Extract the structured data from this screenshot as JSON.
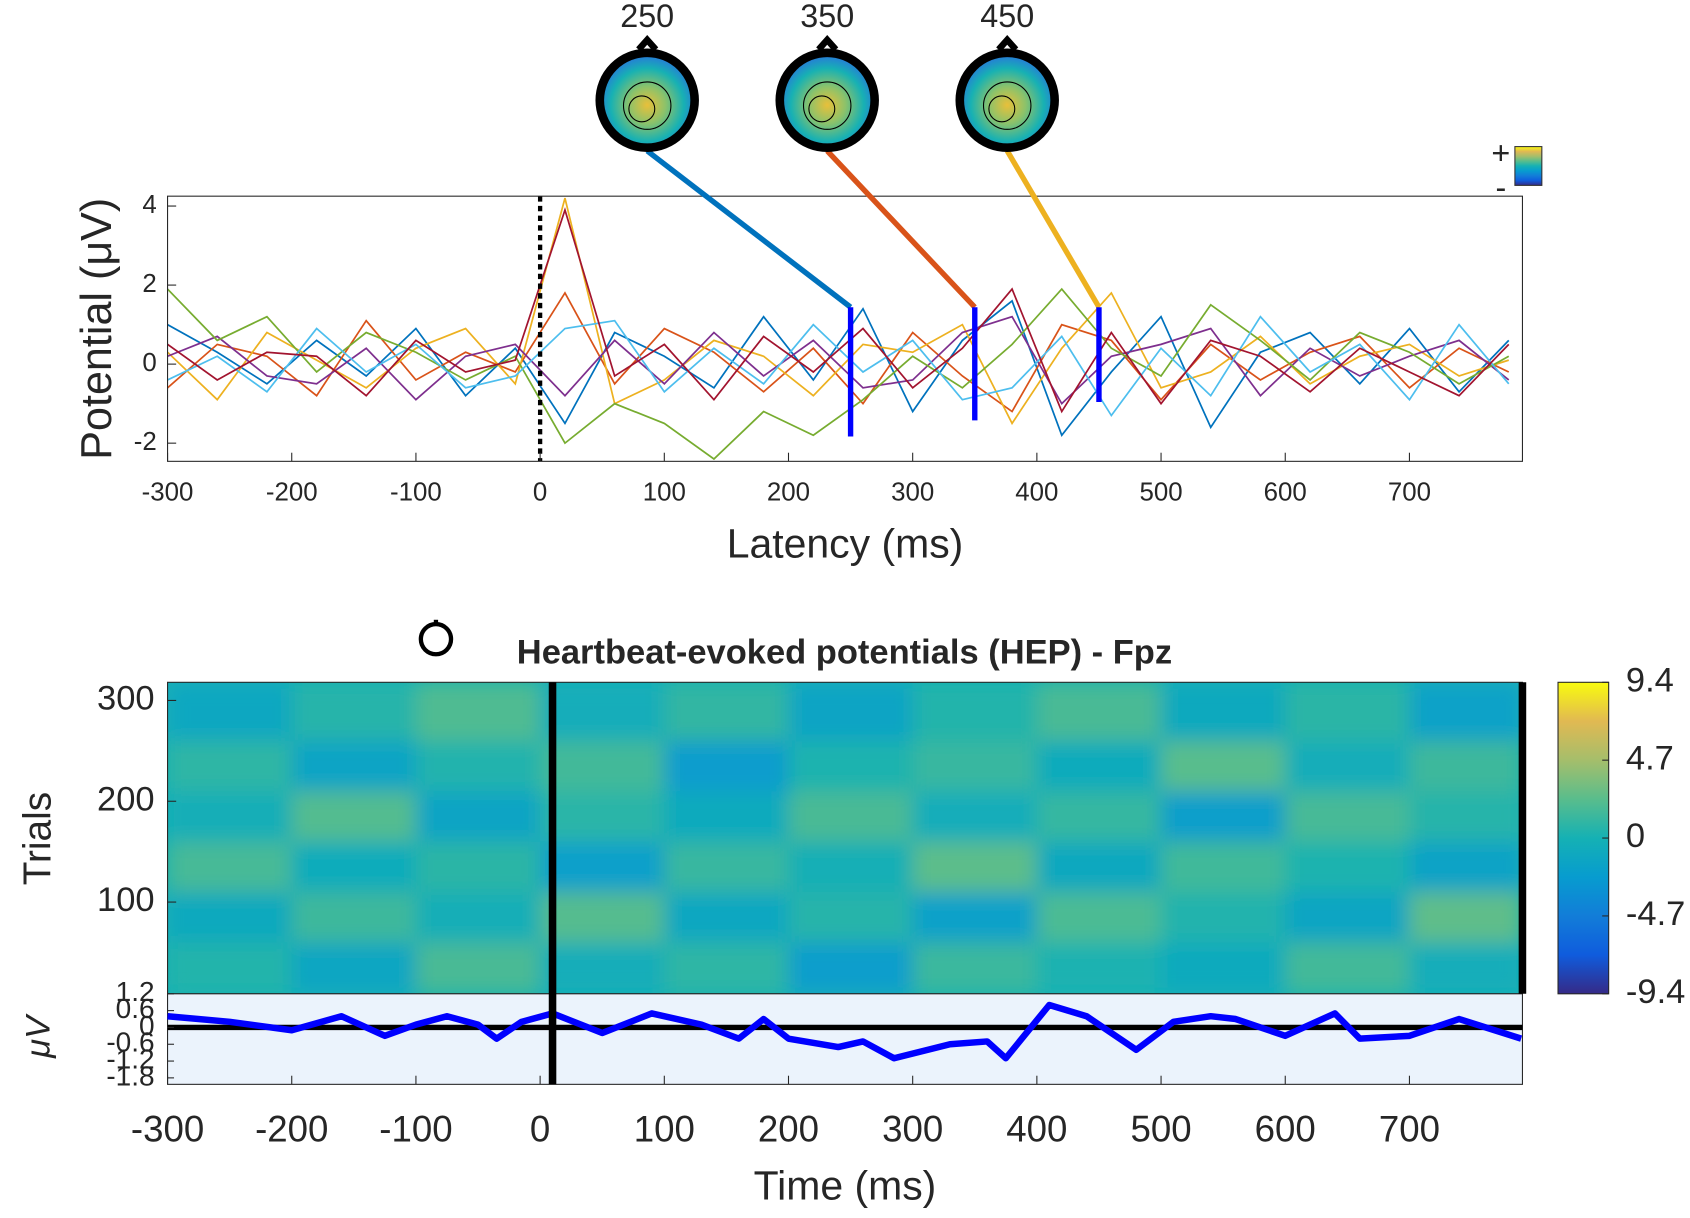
{
  "chart_data": [
    {
      "type": "butterfly",
      "xlabel": "Latency (ms)",
      "ylabel": "Potential (μV)",
      "xlim": [
        -300,
        791
      ],
      "ylim": [
        -2.46,
        4.25
      ],
      "xticks": [
        -300,
        -200,
        -100,
        0,
        100,
        200,
        300,
        400,
        500,
        600,
        700
      ],
      "yticks": [
        -2,
        0,
        2,
        4
      ],
      "event_line": 0,
      "topomaps": {
        "latencies": [
          250,
          350,
          450
        ],
        "colors": [
          "#0072BD",
          "#D95319",
          "#EDB120"
        ]
      },
      "colorbar_plus": "+",
      "colorbar_minus": "-",
      "x": [
        -300,
        -260,
        -220,
        -180,
        -140,
        -100,
        -60,
        -20,
        20,
        60,
        100,
        140,
        180,
        220,
        260,
        300,
        340,
        380,
        420,
        460,
        500,
        540,
        580,
        620,
        660,
        700,
        740,
        780
      ],
      "series": [
        {
          "color": "#0072BD",
          "values": [
            1.0,
            0.3,
            -0.5,
            0.6,
            -0.3,
            0.9,
            -0.8,
            0.4,
            -1.5,
            0.8,
            0.2,
            -0.6,
            1.2,
            -0.4,
            1.4,
            -1.2,
            0.6,
            1.6,
            -1.8,
            -0.2,
            1.2,
            -1.6,
            0.3,
            0.8,
            -0.5,
            0.9,
            -0.7,
            0.6
          ]
        },
        {
          "color": "#D95319",
          "values": [
            -0.6,
            0.5,
            0.2,
            -0.8,
            1.1,
            -0.4,
            0.3,
            -0.2,
            1.8,
            -0.5,
            0.9,
            0.3,
            -0.7,
            0.4,
            -1.0,
            0.8,
            -0.3,
            -1.2,
            1.0,
            0.6,
            -0.9,
            0.5,
            -0.4,
            0.3,
            0.7,
            -0.6,
            0.4,
            -0.2
          ]
        },
        {
          "color": "#EDB120",
          "values": [
            0.3,
            -0.9,
            0.8,
            0.1,
            -0.6,
            0.4,
            0.9,
            -0.5,
            4.2,
            -1.0,
            -0.4,
            0.6,
            0.2,
            -0.8,
            0.5,
            0.3,
            1.0,
            -1.5,
            0.4,
            1.8,
            -0.6,
            -0.2,
            0.7,
            -0.5,
            0.2,
            0.5,
            -0.3,
            0.1
          ]
        },
        {
          "color": "#7E2F8E",
          "values": [
            0.2,
            0.7,
            -0.3,
            -0.5,
            0.4,
            -0.9,
            0.2,
            0.5,
            -0.8,
            0.6,
            -0.5,
            0.8,
            -0.3,
            0.6,
            -0.6,
            -0.4,
            0.8,
            1.2,
            -1.0,
            0.2,
            0.5,
            0.9,
            -0.8,
            0.4,
            -0.3,
            0.2,
            0.6,
            -0.4
          ]
        },
        {
          "color": "#77AC30",
          "values": [
            1.9,
            0.6,
            1.2,
            -0.2,
            0.8,
            0.3,
            -0.4,
            0.2,
            -2.0,
            -1.0,
            -1.5,
            -2.4,
            -1.2,
            -1.8,
            -0.9,
            0.2,
            -0.6,
            0.5,
            1.9,
            0.4,
            -0.3,
            1.5,
            0.6,
            -0.4,
            0.8,
            0.3,
            -0.5,
            0.2
          ]
        },
        {
          "color": "#4DBEEE",
          "values": [
            -0.4,
            0.2,
            -0.7,
            0.9,
            -0.2,
            0.5,
            -0.6,
            -0.3,
            0.9,
            1.1,
            -0.7,
            0.4,
            -0.5,
            1.0,
            -0.2,
            0.6,
            -0.9,
            -0.6,
            0.7,
            -1.3,
            0.4,
            -0.8,
            1.2,
            -0.2,
            0.5,
            -0.9,
            1.0,
            -0.5
          ]
        },
        {
          "color": "#A2142F",
          "values": [
            0.5,
            -0.4,
            0.3,
            0.2,
            -0.8,
            0.6,
            -0.2,
            0.1,
            3.9,
            -0.3,
            0.5,
            -0.9,
            0.7,
            -0.2,
            0.9,
            -0.6,
            0.4,
            1.9,
            -1.2,
            0.8,
            -1.0,
            0.6,
            0.2,
            -0.7,
            0.4,
            -0.2,
            -0.8,
            0.5
          ]
        }
      ]
    },
    {
      "type": "erpimage",
      "title": "Heartbeat-evoked potentials (HEP) - Fpz",
      "ylabel": "Trials",
      "erp_ylabel": "μV",
      "xlabel": "Time (ms)",
      "xlim": [
        -300,
        791
      ],
      "ylim": [
        9,
        318
      ],
      "erp_ylim": [
        -1.8,
        1.2
      ],
      "xticks": [
        -300,
        -200,
        -100,
        0,
        100,
        200,
        300,
        400,
        500,
        600,
        700
      ],
      "yticks": [
        100,
        200,
        300
      ],
      "erp_yticks": [
        -1.8,
        -1.2,
        -0.6,
        0,
        0.6,
        1.2
      ],
      "clim": [
        -9.4,
        9.4
      ],
      "cticks": [
        -9.4,
        -4.7,
        0,
        4.7,
        9.4
      ],
      "colormap": [
        "#352A87",
        "#0F5CDD",
        "#127DD8",
        "#079CCF",
        "#15B1B4",
        "#59BD8C",
        "#A5BE6B",
        "#E1B952",
        "#F9FB0E"
      ],
      "markers": [
        10,
        791
      ],
      "image": {
        "x_edges": [
          -300,
          -200,
          -100,
          0,
          100,
          200,
          300,
          400,
          500,
          600,
          700,
          791
        ],
        "y_edges": [
          9,
          60,
          110,
          160,
          210,
          260,
          318
        ],
        "values": [
          [
            0.5,
            -1.2,
            1.8,
            -0.4,
            0.9,
            -2.1,
            1.3,
            0.2,
            -0.8,
            1.6,
            -0.5
          ],
          [
            -0.9,
            1.4,
            -0.3,
            2.2,
            -1.1,
            0.6,
            -1.8,
            1.9,
            0.4,
            -1.3,
            2.5
          ],
          [
            1.7,
            -0.6,
            0.8,
            -1.9,
            1.2,
            -0.2,
            2.4,
            -1.0,
            1.5,
            0.3,
            -1.6
          ],
          [
            -0.3,
            2.1,
            -1.4,
            0.7,
            -0.8,
            1.8,
            -0.5,
            1.1,
            -2.0,
            1.7,
            0.6
          ],
          [
            0.9,
            -1.5,
            0.4,
            1.6,
            -2.2,
            0.3,
            1.2,
            -0.7,
            2.3,
            -0.4,
            1.4
          ],
          [
            -1.1,
            0.6,
            2.0,
            -0.5,
            1.0,
            -1.4,
            0.5,
            1.8,
            -0.9,
            0.8,
            -1.7
          ]
        ]
      },
      "erp": {
        "color": "#0000FF",
        "x": [
          -300,
          -250,
          -200,
          -160,
          -125,
          -100,
          -75,
          -50,
          -35,
          -15,
          10,
          50,
          90,
          130,
          160,
          180,
          200,
          240,
          260,
          285,
          330,
          360,
          375,
          410,
          440,
          480,
          510,
          540,
          560,
          600,
          640,
          660,
          700,
          740,
          790
        ],
        "values": [
          0.4,
          0.2,
          -0.1,
          0.4,
          -0.3,
          0.1,
          0.4,
          0.1,
          -0.4,
          0.2,
          0.5,
          -0.2,
          0.5,
          0.1,
          -0.4,
          0.3,
          -0.4,
          -0.7,
          -0.5,
          -1.1,
          -0.6,
          -0.5,
          -1.1,
          0.8,
          0.4,
          -0.8,
          0.2,
          0.4,
          0.3,
          -0.3,
          0.5,
          -0.4,
          -0.3,
          0.3,
          -0.4
        ]
      }
    }
  ]
}
